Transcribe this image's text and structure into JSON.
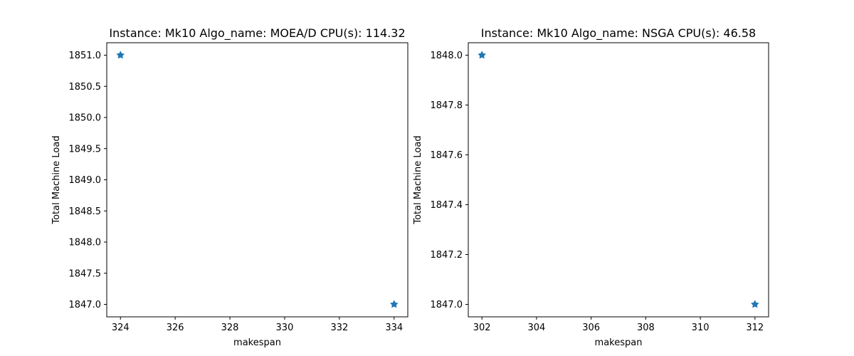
{
  "chart_data": [
    {
      "type": "scatter",
      "title": "Instance: Mk10 Algo_name: MOEA/D CPU(s): 114.32",
      "xlabel": "makespan",
      "ylabel": "Total Machine Load",
      "xlim": [
        323.5,
        334.5
      ],
      "ylim": [
        1846.8,
        1851.2
      ],
      "xticks": [
        324,
        326,
        328,
        330,
        332,
        334
      ],
      "xtick_labels": [
        "324",
        "326",
        "328",
        "330",
        "332",
        "334"
      ],
      "yticks": [
        1847.0,
        1847.5,
        1848.0,
        1848.5,
        1849.0,
        1849.5,
        1850.0,
        1850.5,
        1851.0
      ],
      "ytick_labels": [
        "1847.0",
        "1847.5",
        "1848.0",
        "1848.5",
        "1849.0",
        "1849.5",
        "1850.0",
        "1850.5",
        "1851.0"
      ],
      "points": [
        {
          "x": 324,
          "y": 1851.0
        },
        {
          "x": 334,
          "y": 1847.0
        }
      ],
      "marker_color": "#1f77b4",
      "grid": false
    },
    {
      "type": "scatter",
      "title": "Instance: Mk10 Algo_name: NSGA CPU(s): 46.58",
      "xlabel": "makespan",
      "ylabel": "Total Machine Load",
      "xlim": [
        301.5,
        312.5
      ],
      "ylim": [
        1846.95,
        1848.05
      ],
      "xticks": [
        302,
        304,
        306,
        308,
        310,
        312
      ],
      "xtick_labels": [
        "302",
        "304",
        "306",
        "308",
        "310",
        "312"
      ],
      "yticks": [
        1847.0,
        1847.2,
        1847.4,
        1847.6,
        1847.8,
        1848.0
      ],
      "ytick_labels": [
        "1847.0",
        "1847.2",
        "1847.4",
        "1847.6",
        "1847.8",
        "1848.0"
      ],
      "points": [
        {
          "x": 302,
          "y": 1848.0
        },
        {
          "x": 312,
          "y": 1847.0
        }
      ],
      "marker_color": "#1f77b4",
      "grid": false
    }
  ]
}
